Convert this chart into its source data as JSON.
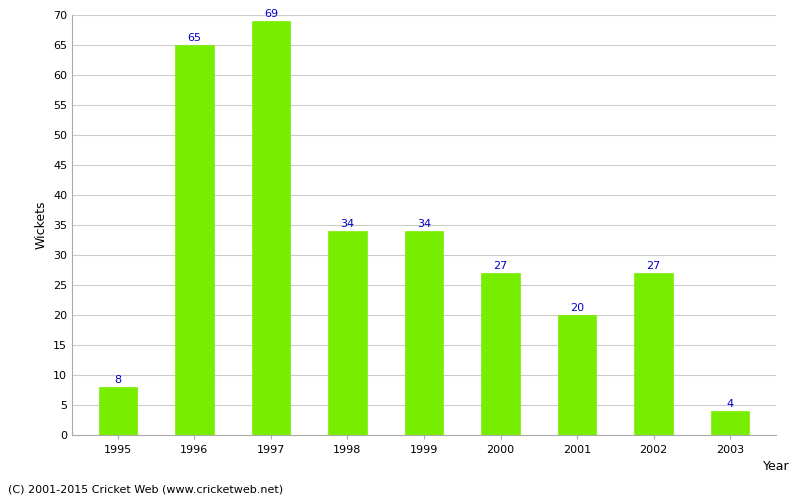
{
  "years": [
    "1995",
    "1996",
    "1997",
    "1998",
    "1999",
    "2000",
    "2001",
    "2002",
    "2003"
  ],
  "values": [
    8,
    65,
    69,
    34,
    34,
    27,
    20,
    27,
    4
  ],
  "bar_color": "#77ee00",
  "bar_edge_color": "#77ee00",
  "label_color": "#0000cc",
  "xlabel": "Year",
  "ylabel": "Wickets",
  "ylim": [
    0,
    70
  ],
  "yticks": [
    0,
    5,
    10,
    15,
    20,
    25,
    30,
    35,
    40,
    45,
    50,
    55,
    60,
    65,
    70
  ],
  "grid_color": "#cccccc",
  "background_color": "#ffffff",
  "footnote": "(C) 2001-2015 Cricket Web (www.cricketweb.net)",
  "label_fontsize": 8,
  "axis_label_fontsize": 9,
  "tick_fontsize": 8,
  "footnote_fontsize": 8,
  "bar_width": 0.5
}
